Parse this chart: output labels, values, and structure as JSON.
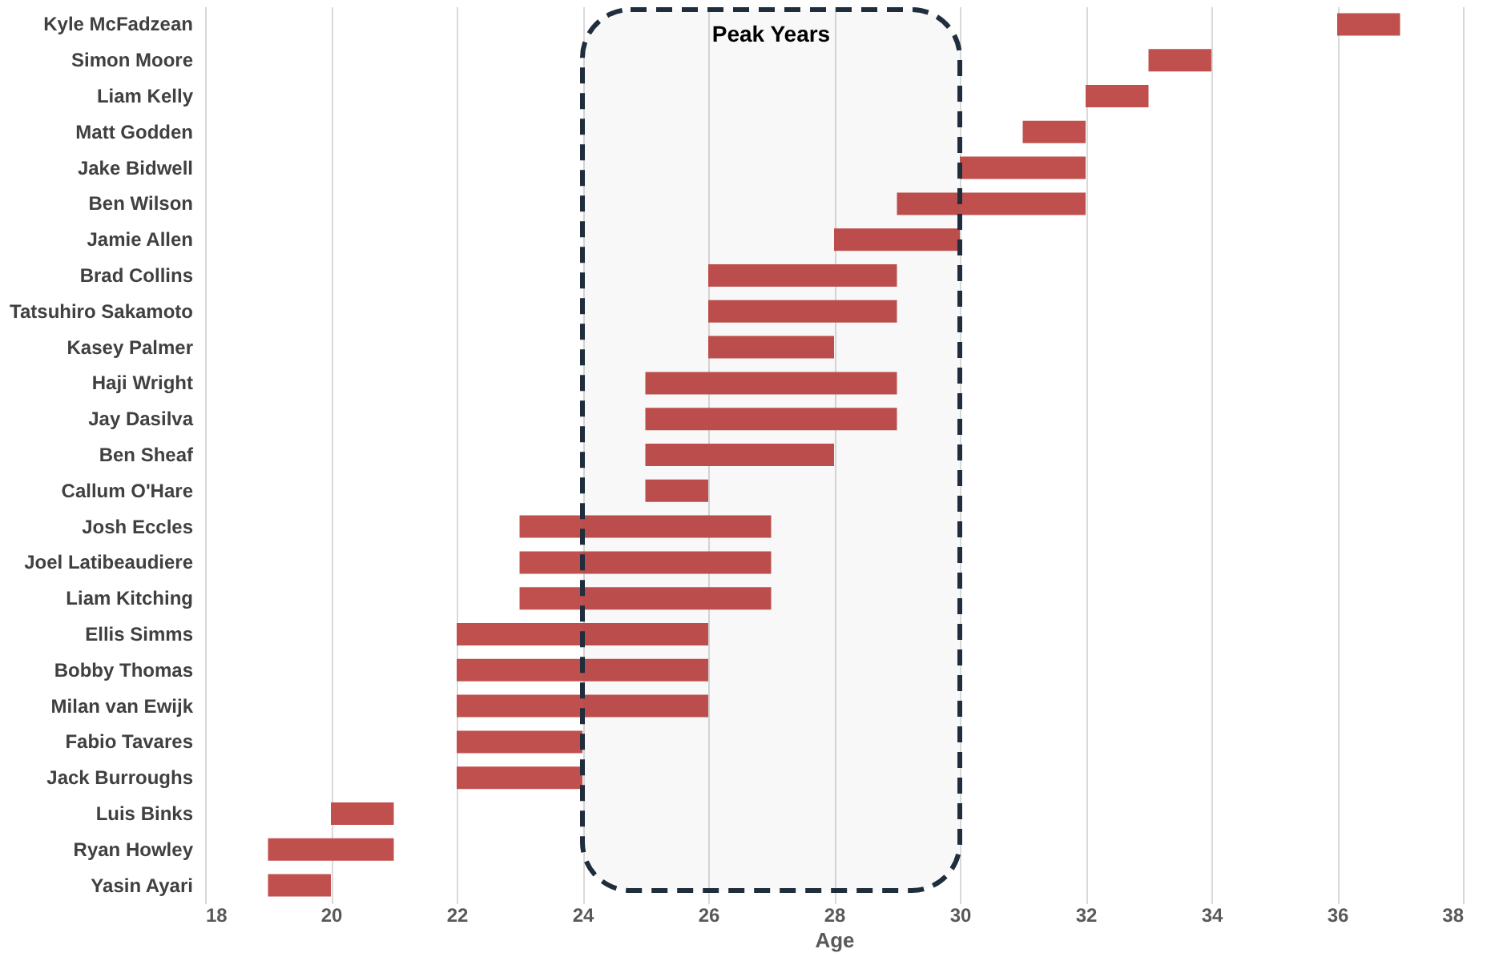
{
  "chart_data": {
    "type": "bar",
    "orientation": "horizontal",
    "xlabel": "Age",
    "categories": [
      "Kyle McFadzean",
      "Simon Moore",
      "Liam Kelly",
      "Matt Godden",
      "Jake Bidwell",
      "Ben Wilson",
      "Jamie Allen",
      "Brad Collins",
      "Tatsuhiro Sakamoto",
      "Kasey Palmer",
      "Haji Wright",
      "Jay Dasilva",
      "Ben Sheaf",
      "Callum O'Hare",
      "Josh Eccles",
      "Joel Latibeaudiere",
      "Liam Kitching",
      "Ellis Simms",
      "Bobby Thomas",
      "Milan van Ewijk",
      "Fabio Tavares",
      "Jack Burroughs",
      "Luis Binks",
      "Ryan Howley",
      "Yasin Ayari"
    ],
    "base": [
      36,
      33,
      32,
      31,
      30,
      29,
      28,
      26,
      26,
      26,
      25,
      25,
      25,
      25,
      23,
      23,
      23,
      22,
      22,
      22,
      22,
      22,
      20,
      19,
      19
    ],
    "values": [
      1,
      1,
      1,
      1,
      2,
      3,
      2,
      3,
      3,
      2,
      4,
      4,
      3,
      1,
      4,
      4,
      4,
      4,
      4,
      4,
      2,
      2,
      1,
      2,
      1
    ],
    "color": "#c0504d",
    "xlim": [
      18,
      38
    ],
    "xticks": [
      18,
      20,
      22,
      24,
      26,
      28,
      30,
      32,
      34,
      36,
      38
    ],
    "grid": "x",
    "bands": [
      {
        "axis": "x",
        "from": 24,
        "to": 30,
        "label": "Peak Years",
        "color": "#1f2d3d"
      }
    ]
  }
}
